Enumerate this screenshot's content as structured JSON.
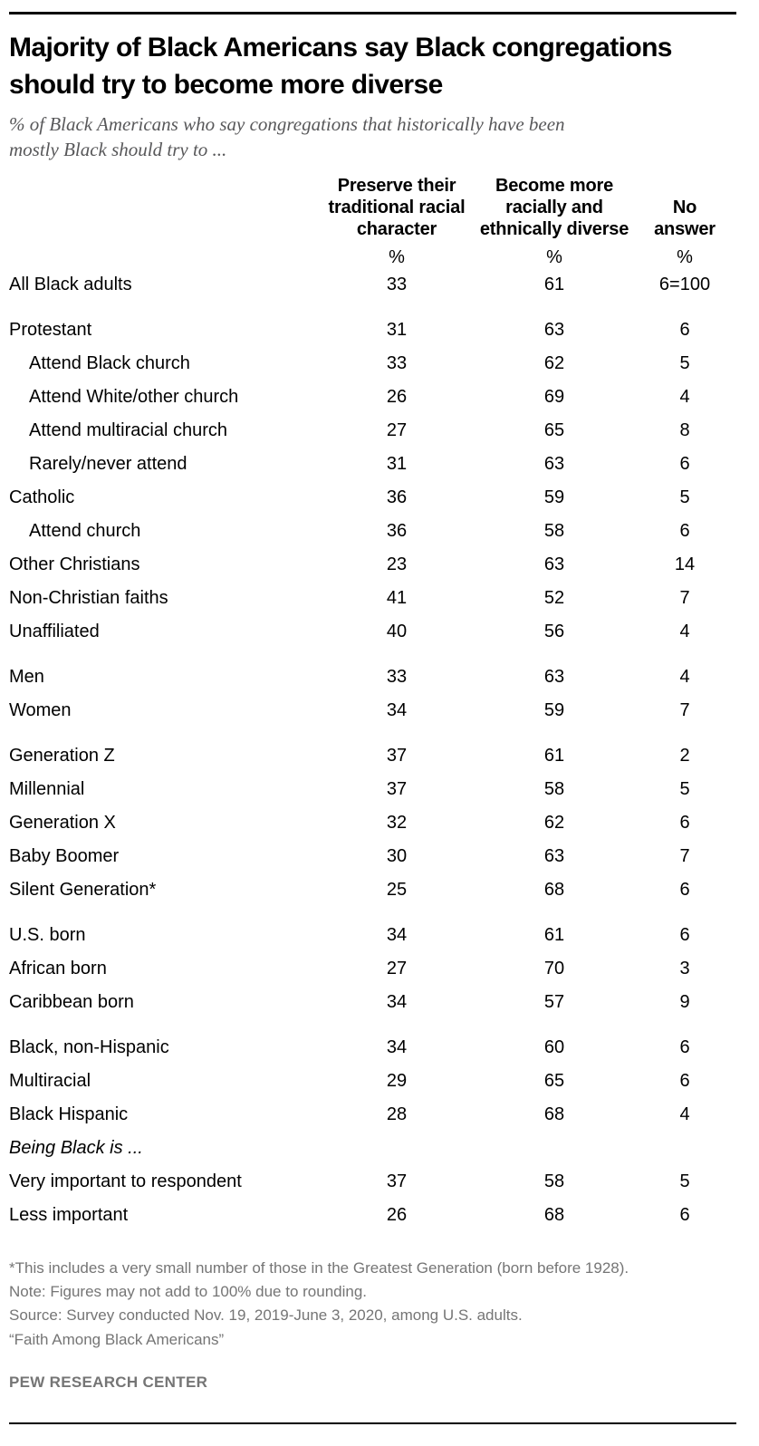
{
  "header": {
    "title": "Majority of Black Americans say Black congregations\nshould try to become more diverse",
    "subtitle": "% of Black Americans who say congregations that historically have been\nmostly Black should try to ..."
  },
  "table": {
    "column_headers": [
      "Preserve their\ntraditional racial\ncharacter",
      "Become more\nracially and\nethnically diverse",
      "No\nanswer"
    ],
    "percent_symbols": [
      "%",
      "%",
      "%"
    ],
    "rows": [
      {
        "label": "All Black adults",
        "values": [
          "33",
          "61",
          "6=100"
        ],
        "indent": false,
        "gap": false,
        "italic": false
      },
      {
        "label": "Protestant",
        "values": [
          "31",
          "63",
          "6"
        ],
        "indent": false,
        "gap": true,
        "italic": false
      },
      {
        "label": "Attend Black church",
        "values": [
          "33",
          "62",
          "5"
        ],
        "indent": true,
        "gap": false,
        "italic": false
      },
      {
        "label": "Attend White/other church",
        "values": [
          "26",
          "69",
          "4"
        ],
        "indent": true,
        "gap": false,
        "italic": false
      },
      {
        "label": "Attend multiracial church",
        "values": [
          "27",
          "65",
          "8"
        ],
        "indent": true,
        "gap": false,
        "italic": false
      },
      {
        "label": "Rarely/never attend",
        "values": [
          "31",
          "63",
          "6"
        ],
        "indent": true,
        "gap": false,
        "italic": false
      },
      {
        "label": "Catholic",
        "values": [
          "36",
          "59",
          "5"
        ],
        "indent": false,
        "gap": false,
        "italic": false
      },
      {
        "label": "Attend church",
        "values": [
          "36",
          "58",
          "6"
        ],
        "indent": true,
        "gap": false,
        "italic": false
      },
      {
        "label": "Other Christians",
        "values": [
          "23",
          "63",
          "14"
        ],
        "indent": false,
        "gap": false,
        "italic": false
      },
      {
        "label": "Non-Christian faiths",
        "values": [
          "41",
          "52",
          "7"
        ],
        "indent": false,
        "gap": false,
        "italic": false
      },
      {
        "label": "Unaffiliated",
        "values": [
          "40",
          "56",
          "4"
        ],
        "indent": false,
        "gap": false,
        "italic": false
      },
      {
        "label": "Men",
        "values": [
          "33",
          "63",
          "4"
        ],
        "indent": false,
        "gap": true,
        "italic": false
      },
      {
        "label": "Women",
        "values": [
          "34",
          "59",
          "7"
        ],
        "indent": false,
        "gap": false,
        "italic": false
      },
      {
        "label": "Generation Z",
        "values": [
          "37",
          "61",
          "2"
        ],
        "indent": false,
        "gap": true,
        "italic": false
      },
      {
        "label": "Millennial",
        "values": [
          "37",
          "58",
          "5"
        ],
        "indent": false,
        "gap": false,
        "italic": false
      },
      {
        "label": "Generation X",
        "values": [
          "32",
          "62",
          "6"
        ],
        "indent": false,
        "gap": false,
        "italic": false
      },
      {
        "label": "Baby Boomer",
        "values": [
          "30",
          "63",
          "7"
        ],
        "indent": false,
        "gap": false,
        "italic": false
      },
      {
        "label": "Silent Generation*",
        "values": [
          "25",
          "68",
          "6"
        ],
        "indent": false,
        "gap": false,
        "italic": false
      },
      {
        "label": "U.S. born",
        "values": [
          "34",
          "61",
          "6"
        ],
        "indent": false,
        "gap": true,
        "italic": false
      },
      {
        "label": "African born",
        "values": [
          "27",
          "70",
          "3"
        ],
        "indent": false,
        "gap": false,
        "italic": false
      },
      {
        "label": "Caribbean born",
        "values": [
          "34",
          "57",
          "9"
        ],
        "indent": false,
        "gap": false,
        "italic": false
      },
      {
        "label": "Black, non-Hispanic",
        "values": [
          "34",
          "60",
          "6"
        ],
        "indent": false,
        "gap": true,
        "italic": false
      },
      {
        "label": "Multiracial",
        "values": [
          "29",
          "65",
          "6"
        ],
        "indent": false,
        "gap": false,
        "italic": false
      },
      {
        "label": "Black Hispanic",
        "values": [
          "28",
          "68",
          "4"
        ],
        "indent": false,
        "gap": false,
        "italic": false
      },
      {
        "label": "Being Black is ...",
        "values": [],
        "indent": false,
        "gap": false,
        "italic": true
      },
      {
        "label": "Very important to respondent",
        "values": [
          "37",
          "58",
          "5"
        ],
        "indent": false,
        "gap": false,
        "italic": false
      },
      {
        "label": "Less important",
        "values": [
          "26",
          "68",
          "6"
        ],
        "indent": false,
        "gap": false,
        "italic": false
      }
    ]
  },
  "footer": {
    "footnote": "*This includes a very small number of those in the Greatest Generation (born before 1928).",
    "note": "Note: Figures may not add to 100% due to rounding.",
    "source": "Source: Survey conducted Nov. 19, 2019-June 3, 2020, among U.S. adults.",
    "report": "“Faith Among Black Americans”",
    "brand": "PEW RESEARCH CENTER"
  },
  "colors": {
    "text": "#000000",
    "subtitle_gray": "#58585a",
    "footer_gray": "#757575",
    "rule": "#000000"
  },
  "chart_data": {
    "type": "table",
    "title": "Majority of Black Americans say Black congregations should try to become more diverse",
    "subtitle": "% of Black Americans who say congregations that historically have been mostly Black should try to ...",
    "columns": [
      "Preserve their traditional racial character",
      "Become more racially and ethnically diverse",
      "No answer"
    ],
    "rows": [
      [
        "All Black adults",
        33,
        61,
        6
      ],
      [
        "Protestant",
        31,
        63,
        6
      ],
      [
        "Attend Black church",
        33,
        62,
        5
      ],
      [
        "Attend White/other church",
        26,
        69,
        4
      ],
      [
        "Attend multiracial church",
        27,
        65,
        8
      ],
      [
        "Rarely/never attend",
        31,
        63,
        6
      ],
      [
        "Catholic",
        36,
        59,
        5
      ],
      [
        "Attend church",
        36,
        58,
        6
      ],
      [
        "Other Christians",
        23,
        63,
        14
      ],
      [
        "Non-Christian faiths",
        41,
        52,
        7
      ],
      [
        "Unaffiliated",
        40,
        56,
        4
      ],
      [
        "Men",
        33,
        63,
        4
      ],
      [
        "Women",
        34,
        59,
        7
      ],
      [
        "Generation Z",
        37,
        61,
        2
      ],
      [
        "Millennial",
        37,
        58,
        5
      ],
      [
        "Generation X",
        32,
        62,
        6
      ],
      [
        "Baby Boomer",
        30,
        63,
        7
      ],
      [
        "Silent Generation*",
        25,
        68,
        6
      ],
      [
        "U.S. born",
        34,
        61,
        6
      ],
      [
        "African born",
        27,
        70,
        3
      ],
      [
        "Caribbean born",
        34,
        57,
        9
      ],
      [
        "Black, non-Hispanic",
        34,
        60,
        6
      ],
      [
        "Multiracial",
        29,
        65,
        6
      ],
      [
        "Black Hispanic",
        28,
        68,
        4
      ],
      [
        "Very important to respondent",
        37,
        58,
        5
      ],
      [
        "Less important",
        26,
        68,
        6
      ]
    ],
    "units": "percent"
  }
}
